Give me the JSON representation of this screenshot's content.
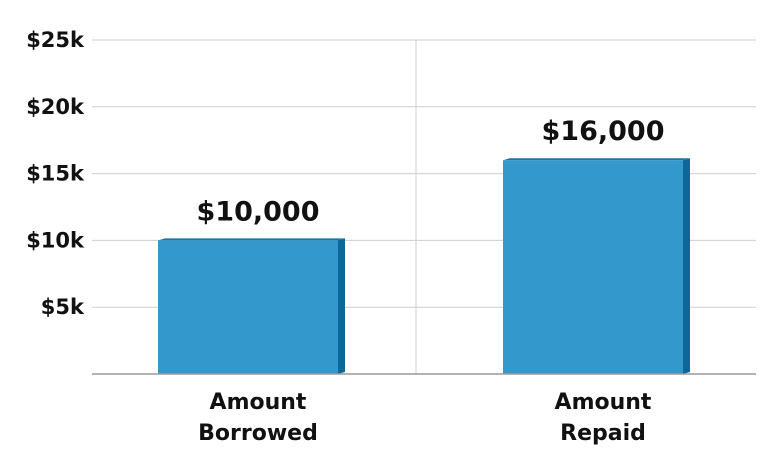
{
  "chart_data": {
    "type": "bar",
    "categories": [
      [
        "Amount",
        "Borrowed"
      ],
      [
        "Amount",
        "Repaid"
      ]
    ],
    "values": [
      10000,
      16000
    ],
    "data_labels": [
      "$10,000",
      "$16,000"
    ],
    "ylim": [
      0,
      25000
    ],
    "y_ticks": [
      {
        "value": 5000,
        "label": "$5k"
      },
      {
        "value": 10000,
        "label": "$10k"
      },
      {
        "value": 15000,
        "label": "$15k"
      },
      {
        "value": 20000,
        "label": "$20k"
      },
      {
        "value": 25000,
        "label": "$25k"
      }
    ],
    "grid": true,
    "colors": {
      "bar_front": "#3399cc",
      "bar_side": "#0d6799",
      "bar_top": "#1a75a8",
      "grid": "#cfcfcf",
      "axis": "#9a9a9a"
    }
  }
}
